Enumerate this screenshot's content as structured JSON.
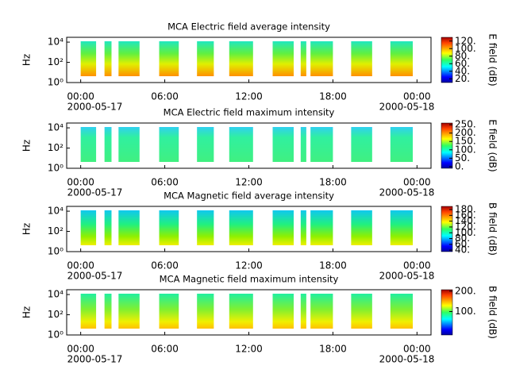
{
  "chart_data": [
    {
      "type": "heatmap",
      "title": "MCA  Electric field average intensity",
      "ylabel": "Hz",
      "colorbar_label": "E field (dB)",
      "xlim": [
        -1,
        25
      ],
      "xticks": [
        {
          "value": 0,
          "label": "00:00"
        },
        {
          "value": 6,
          "label": "06:00"
        },
        {
          "value": 12,
          "label": "12:00"
        },
        {
          "value": 18,
          "label": "18:00"
        },
        {
          "value": 24,
          "label": "00:00"
        }
      ],
      "date_labels": [
        "2000-05-17",
        "2000-05-18"
      ],
      "log_y": true,
      "ylim": [
        1,
        30000
      ],
      "yticks": [
        {
          "value": 1,
          "label": "10⁰"
        },
        {
          "value": 100,
          "label": "10²"
        },
        {
          "value": 10000,
          "label": "10⁴"
        }
      ],
      "clim": [
        10,
        130
      ],
      "cticks": [
        {
          "value": 20,
          "label": "20."
        },
        {
          "value": 40,
          "label": "40."
        },
        {
          "value": 60,
          "label": "60."
        },
        {
          "value": 80,
          "label": "80."
        },
        {
          "value": 100,
          "label": "100."
        },
        {
          "value": 120,
          "label": "120."
        }
      ],
      "segments": [
        [
          0,
          1.1
        ],
        [
          1.7,
          2.2
        ],
        [
          2.7,
          4.2
        ],
        [
          5.6,
          7.0
        ],
        [
          8.3,
          9.5
        ],
        [
          10.6,
          12.3
        ],
        [
          13.7,
          15.2
        ],
        [
          15.7,
          16.1
        ],
        [
          16.4,
          18.0
        ],
        [
          19.3,
          20.8
        ],
        [
          22.1,
          23.7
        ]
      ]
    },
    {
      "type": "heatmap",
      "title": "MCA  Electric field maximum intensity",
      "ylabel": "Hz",
      "colorbar_label": "E field (dB)",
      "xlim": [
        -1,
        25
      ],
      "xticks": [
        {
          "value": 0,
          "label": "00:00"
        },
        {
          "value": 6,
          "label": "06:00"
        },
        {
          "value": 12,
          "label": "12:00"
        },
        {
          "value": 18,
          "label": "18:00"
        },
        {
          "value": 24,
          "label": "00:00"
        }
      ],
      "date_labels": [
        "2000-05-17",
        "2000-05-18"
      ],
      "log_y": true,
      "ylim": [
        1,
        30000
      ],
      "yticks": [
        {
          "value": 1,
          "label": "10⁰"
        },
        {
          "value": 100,
          "label": "10²"
        },
        {
          "value": 10000,
          "label": "10⁴"
        }
      ],
      "clim": [
        -10,
        260
      ],
      "cticks": [
        {
          "value": 0,
          "label": "0."
        },
        {
          "value": 50,
          "label": "50."
        },
        {
          "value": 100,
          "label": "100."
        },
        {
          "value": 150,
          "label": "150."
        },
        {
          "value": 200,
          "label": "200."
        },
        {
          "value": 250,
          "label": "250."
        }
      ],
      "segments": [
        [
          0,
          1.1
        ],
        [
          1.7,
          2.2
        ],
        [
          2.7,
          4.2
        ],
        [
          5.6,
          7.0
        ],
        [
          8.3,
          9.5
        ],
        [
          10.6,
          12.3
        ],
        [
          13.7,
          15.2
        ],
        [
          15.7,
          16.1
        ],
        [
          16.4,
          18.0
        ],
        [
          19.3,
          20.8
        ],
        [
          22.1,
          23.7
        ]
      ]
    },
    {
      "type": "heatmap",
      "title": "MCA  Magnetic field average intensity",
      "ylabel": "Hz",
      "colorbar_label": "B field (dB)",
      "xlim": [
        -1,
        25
      ],
      "xticks": [
        {
          "value": 0,
          "label": "00:00"
        },
        {
          "value": 6,
          "label": "06:00"
        },
        {
          "value": 12,
          "label": "12:00"
        },
        {
          "value": 18,
          "label": "18:00"
        },
        {
          "value": 24,
          "label": "00:00"
        }
      ],
      "date_labels": [
        "2000-05-17",
        "2000-05-18"
      ],
      "log_y": true,
      "ylim": [
        1,
        30000
      ],
      "yticks": [
        {
          "value": 1,
          "label": "10⁰"
        },
        {
          "value": 100,
          "label": "10²"
        },
        {
          "value": 10000,
          "label": "10⁴"
        }
      ],
      "clim": [
        35,
        191
      ],
      "cticks": [
        {
          "value": 40,
          "label": "40."
        },
        {
          "value": 60,
          "label": "60."
        },
        {
          "value": 80,
          "label": "80."
        },
        {
          "value": 100,
          "label": "100."
        },
        {
          "value": 120,
          "label": "120."
        },
        {
          "value": 140,
          "label": "140."
        },
        {
          "value": 160,
          "label": "160."
        },
        {
          "value": 180,
          "label": "180."
        }
      ],
      "segments": [
        [
          0,
          1.1
        ],
        [
          1.7,
          2.2
        ],
        [
          2.7,
          4.2
        ],
        [
          5.6,
          7.0
        ],
        [
          8.3,
          9.5
        ],
        [
          10.6,
          12.3
        ],
        [
          13.7,
          15.2
        ],
        [
          15.7,
          16.1
        ],
        [
          16.4,
          18.0
        ],
        [
          19.3,
          20.8
        ],
        [
          22.1,
          23.7
        ]
      ]
    },
    {
      "type": "heatmap",
      "title": "MCA  Magnetic field maximum intensity",
      "ylabel": "Hz",
      "colorbar_label": "B field (dB)",
      "xlim": [
        -1,
        25
      ],
      "xticks": [
        {
          "value": 0,
          "label": "00:00"
        },
        {
          "value": 6,
          "label": "06:00"
        },
        {
          "value": 12,
          "label": "12:00"
        },
        {
          "value": 18,
          "label": "18:00"
        },
        {
          "value": 24,
          "label": "00:00"
        }
      ],
      "date_labels": [
        "2000-05-17",
        "2000-05-18"
      ],
      "log_y": true,
      "ylim": [
        1,
        30000
      ],
      "yticks": [
        {
          "value": 1,
          "label": "10⁰"
        },
        {
          "value": 100,
          "label": "10²"
        },
        {
          "value": 10000,
          "label": "10⁴"
        }
      ],
      "clim": [
        -15,
        207
      ],
      "cticks": [
        {
          "value": 100,
          "label": "100."
        },
        {
          "value": 200,
          "label": "200."
        }
      ],
      "segments": [
        [
          0,
          1.1
        ],
        [
          1.7,
          2.2
        ],
        [
          2.7,
          4.2
        ],
        [
          5.6,
          7.0
        ],
        [
          8.3,
          9.5
        ],
        [
          10.6,
          12.3
        ],
        [
          13.7,
          15.2
        ],
        [
          15.7,
          16.1
        ],
        [
          16.4,
          18.0
        ],
        [
          19.3,
          20.8
        ],
        [
          22.1,
          23.7
        ]
      ]
    }
  ]
}
